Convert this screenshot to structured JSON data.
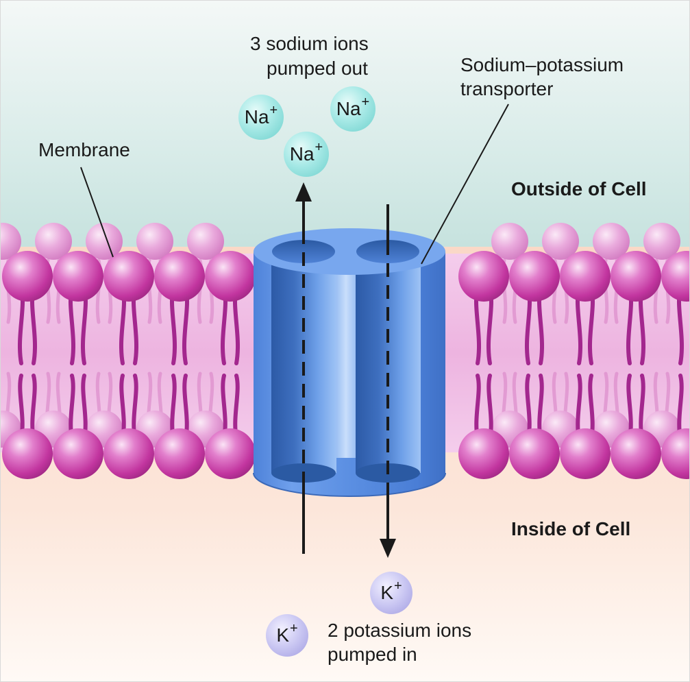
{
  "labels": {
    "sodium_line1": "3 sodium ions",
    "sodium_line2": "pumped out",
    "transporter_line1": "Sodium–potassium",
    "transporter_line2": "transporter",
    "membrane": "Membrane",
    "outside": "Outside of Cell",
    "inside": "Inside of Cell",
    "potassium_line1": "2 potassium ions",
    "potassium_line2": "pumped in"
  },
  "ions": {
    "sodium_symbol": "Na",
    "potassium_symbol": "K",
    "charge": "+"
  },
  "colors": {
    "outside_fill": "#cfe6e3",
    "inside_fill": "#fbe0d2",
    "lipid_head": "#c2359f",
    "lipid_tail": "#a3278e",
    "transporter": "#5a8fe0",
    "sodium_ion": "#a7e9e6",
    "potassium_ion": "#c9c6f2",
    "arrow": "#1a1a1a"
  }
}
